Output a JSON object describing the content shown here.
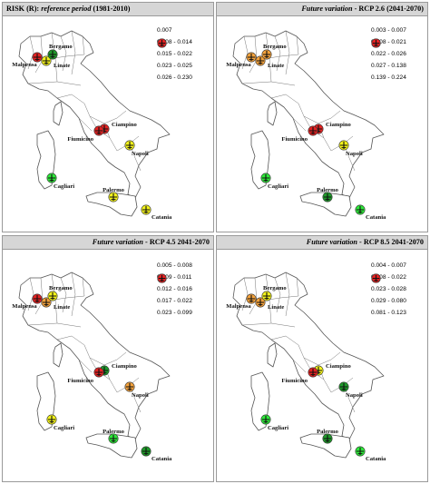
{
  "colors": {
    "class1": "#2ee83a",
    "class2": "#1f9a2a",
    "class3": "#f2f21c",
    "class4": "#f4a23c",
    "class5": "#e42222"
  },
  "airport_names": {
    "malpensa": "Malpensa",
    "linate": "Linate",
    "bergamo": "Bergamo",
    "ciampino": "Ciampino",
    "fiumicino": "Fiumicino",
    "napoli": "Napoli",
    "cagliari": "Cagliari",
    "palermo": "Palermo",
    "catania": "Catania"
  },
  "panels": [
    {
      "title_prefix": "RISK (R): ",
      "title_italic": "reference period",
      "title_suffix": " (1981-2010)",
      "legend": [
        "0.007",
        "0.008 - 0.014",
        "0.015 - 0.022",
        "0.023 - 0.025",
        "0.026 - 0.230"
      ],
      "classes": {
        "malpensa": 5,
        "linate": 3,
        "bergamo": 2,
        "ciampino": 5,
        "fiumicino": 5,
        "napoli": 3,
        "cagliari": 1,
        "palermo": 3,
        "catania": 3
      }
    },
    {
      "title_prefix": "",
      "title_italic": "Future variation",
      "title_suffix": " - RCP 2.6 (2041-2070)",
      "legend": [
        "0.003 - 0.007",
        "0.008 - 0.021",
        "0.022 - 0.026",
        "0.027 - 0.138",
        "0.139 - 0.224"
      ],
      "classes": {
        "malpensa": 4,
        "linate": 4,
        "bergamo": 4,
        "ciampino": 5,
        "fiumicino": 5,
        "napoli": 3,
        "cagliari": 1,
        "palermo": 2,
        "catania": 1
      }
    },
    {
      "title_prefix": "",
      "title_italic": "Future variation",
      "title_suffix": " - RCP 4.5 2041-2070",
      "legend": [
        "0.005 - 0.008",
        "0.009 - 0.011",
        "0.012 - 0.016",
        "0.017 - 0.022",
        "0.023 - 0.099"
      ],
      "classes": {
        "malpensa": 5,
        "linate": 4,
        "bergamo": 3,
        "ciampino": 2,
        "fiumicino": 5,
        "napoli": 4,
        "cagliari": 3,
        "palermo": 1,
        "catania": 2
      }
    },
    {
      "title_prefix": "",
      "title_italic": "Future variation",
      "title_suffix": " - RCP 8.5 2041-2070",
      "legend": [
        "0.004 - 0.007",
        "0.008 - 0.022",
        "0.023 - 0.028",
        "0.029 - 0.080",
        "0.081 - 0.123"
      ],
      "classes": {
        "malpensa": 4,
        "linate": 4,
        "bergamo": 3,
        "ciampino": 3,
        "fiumicino": 5,
        "napoli": 2,
        "cagliari": 1,
        "palermo": 2,
        "catania": 1
      }
    }
  ]
}
